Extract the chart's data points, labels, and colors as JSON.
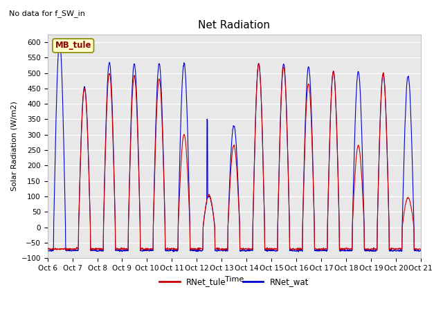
{
  "title": "Net Radiation",
  "subtitle": "No data for f_SW_in",
  "ylabel": "Solar Radiation (W/m2)",
  "xlabel": "Time",
  "ylim": [
    -100,
    625
  ],
  "yticks": [
    -100,
    -50,
    0,
    50,
    100,
    150,
    200,
    250,
    300,
    350,
    400,
    450,
    500,
    550,
    600
  ],
  "xtick_labels": [
    "Oct 6",
    "Oct 7",
    "Oct 8",
    "Oct 9",
    "Oct 10",
    "Oct 11",
    "Oct 12",
    "Oct 13",
    "Oct 14",
    "Oct 15",
    "Oct 16",
    "Oct 17",
    "Oct 18",
    "Oct 19",
    "Oct 20",
    "Oct 21"
  ],
  "line1_color": "#cc0000",
  "line2_color": "#0000cc",
  "line1_label": "RNet_tule",
  "line2_label": "RNet_wat",
  "legend_label": "MB_tule",
  "bg_color": "#e8e8e8",
  "grid_color": "white",
  "title_fontsize": 11,
  "label_fontsize": 8,
  "tick_fontsize": 7.5,
  "legend_fontsize": 8.5
}
